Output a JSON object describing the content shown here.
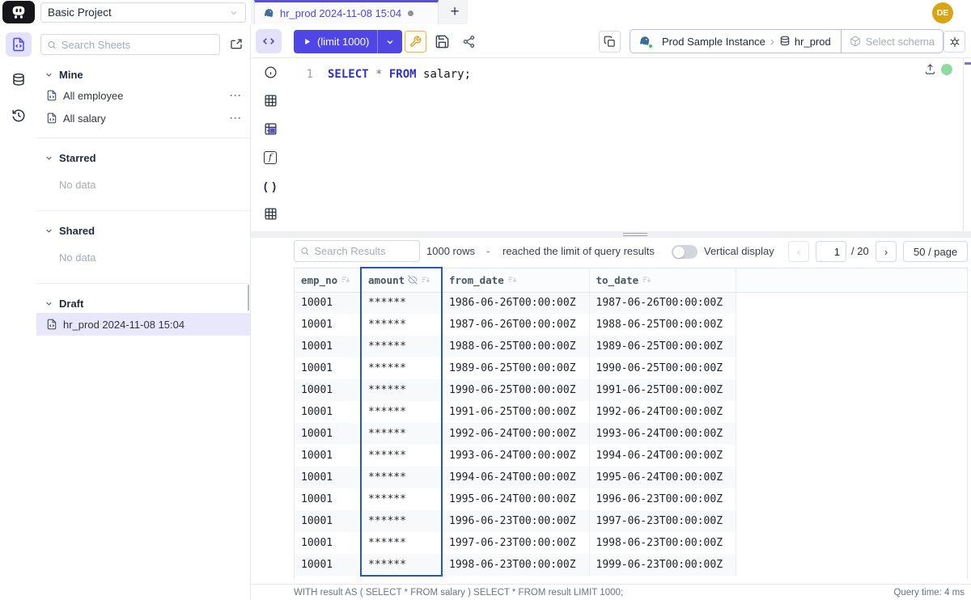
{
  "header": {
    "project_name": "Basic Project",
    "tab_title": "hr_prod 2024-11-08 15:04",
    "new_tab_label": "+",
    "avatar_initials": "DE"
  },
  "sidebar": {
    "search_placeholder": "Search Sheets",
    "sections": [
      {
        "label": "Mine",
        "items": [
          {
            "label": "All employee"
          },
          {
            "label": "All salary"
          }
        ]
      },
      {
        "label": "Starred",
        "empty": "No data"
      },
      {
        "label": "Shared",
        "empty": "No data"
      },
      {
        "label": "Draft",
        "items": [
          {
            "label": "hr_prod 2024-11-08 15:04"
          }
        ]
      }
    ],
    "item_actions_label": "···"
  },
  "toolbar": {
    "run_label": "(limit 1000)",
    "instance": "Prod Sample Instance",
    "breadcrumb_separator": "›",
    "database": "hr_prod",
    "schema_placeholder": "Select schema"
  },
  "editor": {
    "line_number": "1",
    "sql": {
      "kw1": "SELECT",
      "star": " * ",
      "kw2": "FROM",
      "tail": " salary;"
    }
  },
  "results": {
    "search_placeholder": "Search Results",
    "row_count": "1000 rows",
    "separator": "-",
    "limit_message": "reached the limit of query results",
    "vertical_display_label": "Vertical display",
    "prev_label": "‹",
    "next_label": "›",
    "page_value": "1",
    "page_total": "/ 20",
    "page_size_label": "50 / page"
  },
  "table": {
    "columns": [
      {
        "label": "emp_no",
        "masked": false,
        "selected": false
      },
      {
        "label": "amount",
        "masked": true,
        "selected": true
      },
      {
        "label": "from_date",
        "masked": false,
        "selected": false
      },
      {
        "label": "to_date",
        "masked": false,
        "selected": false
      }
    ],
    "rows": [
      [
        "10001",
        "******",
        "1986-06-26T00:00:00Z",
        "1987-06-26T00:00:00Z"
      ],
      [
        "10001",
        "******",
        "1987-06-26T00:00:00Z",
        "1988-06-25T00:00:00Z"
      ],
      [
        "10001",
        "******",
        "1988-06-25T00:00:00Z",
        "1989-06-25T00:00:00Z"
      ],
      [
        "10001",
        "******",
        "1989-06-25T00:00:00Z",
        "1990-06-25T00:00:00Z"
      ],
      [
        "10001",
        "******",
        "1990-06-25T00:00:00Z",
        "1991-06-25T00:00:00Z"
      ],
      [
        "10001",
        "******",
        "1991-06-25T00:00:00Z",
        "1992-06-24T00:00:00Z"
      ],
      [
        "10001",
        "******",
        "1992-06-24T00:00:00Z",
        "1993-06-24T00:00:00Z"
      ],
      [
        "10001",
        "******",
        "1993-06-24T00:00:00Z",
        "1994-06-24T00:00:00Z"
      ],
      [
        "10001",
        "******",
        "1994-06-24T00:00:00Z",
        "1995-06-24T00:00:00Z"
      ],
      [
        "10001",
        "******",
        "1995-06-24T00:00:00Z",
        "1996-06-23T00:00:00Z"
      ],
      [
        "10001",
        "******",
        "1996-06-23T00:00:00Z",
        "1997-06-23T00:00:00Z"
      ],
      [
        "10001",
        "******",
        "1997-06-23T00:00:00Z",
        "1998-06-23T00:00:00Z"
      ],
      [
        "10001",
        "******",
        "1998-06-23T00:00:00Z",
        "1999-06-23T00:00:00Z"
      ]
    ]
  },
  "statusbar": {
    "executed_sql": "WITH result AS ( SELECT * FROM salary ) SELECT * FROM result LIMIT 1000;",
    "query_time": "Query time: 4 ms"
  },
  "colors": {
    "accent": "#4f46e5",
    "tab_accent": "#5b50d0",
    "column_highlight": "#2356c9",
    "keyword_blue": "#2d31c6",
    "status_green": "#90d9a4",
    "avatar_bg": "#d9a514",
    "warning_accent": "#f0b43c"
  }
}
